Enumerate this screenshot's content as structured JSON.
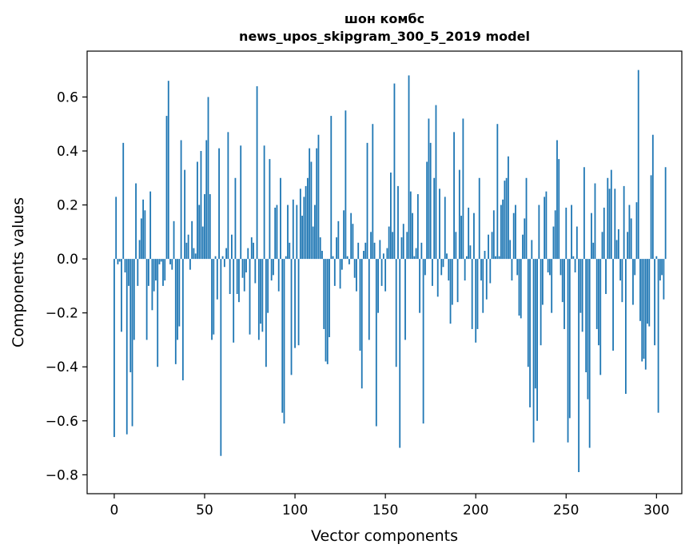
{
  "chart_data": {
    "type": "bar",
    "title": "шон комбс",
    "subtitle": "news_upos_skipgram_300_5_2019 model",
    "xlabel": "Vector components",
    "ylabel": "Components values",
    "xlim": [
      -15,
      314
    ],
    "ylim": [
      -0.87,
      0.77
    ],
    "xticks": [
      0,
      50,
      100,
      150,
      200,
      250,
      300
    ],
    "yticks": [
      -0.8,
      -0.6,
      -0.4,
      -0.2,
      0.0,
      0.2,
      0.4,
      0.6
    ],
    "ytick_labels": [
      "−0.8",
      "−0.6",
      "−0.4",
      "−0.2",
      "0.0",
      "0.2",
      "0.4",
      "0.6"
    ],
    "grid": false,
    "bar_color": "#1f77b4",
    "values": [
      -0.66,
      0.23,
      -0.02,
      -0.01,
      -0.27,
      0.43,
      -0.05,
      -0.65,
      -0.1,
      -0.42,
      -0.62,
      -0.3,
      0.28,
      -0.1,
      0.07,
      0.15,
      0.22,
      0.18,
      -0.3,
      -0.1,
      0.25,
      -0.19,
      -0.12,
      -0.08,
      -0.4,
      -0.02,
      -0.01,
      -0.1,
      -0.08,
      0.53,
      0.66,
      -0.02,
      -0.04,
      0.14,
      -0.39,
      -0.3,
      -0.25,
      0.44,
      -0.45,
      0.33,
      0.06,
      0.09,
      -0.04,
      0.14,
      0.04,
      0.02,
      0.36,
      0.2,
      0.4,
      0.12,
      0.24,
      0.44,
      0.6,
      0.24,
      -0.3,
      -0.28,
      0.01,
      -0.15,
      0.41,
      -0.73,
      0.01,
      -0.03,
      0.04,
      0.47,
      -0.13,
      0.09,
      -0.31,
      0.3,
      -0.13,
      -0.16,
      0.42,
      -0.07,
      -0.12,
      -0.05,
      0.04,
      -0.28,
      0.08,
      0.06,
      -0.09,
      0.64,
      -0.3,
      -0.24,
      -0.27,
      0.42,
      -0.4,
      -0.2,
      0.37,
      -0.08,
      -0.06,
      0.19,
      0.2,
      -0.12,
      0.3,
      -0.57,
      -0.61,
      0.01,
      0.2,
      0.06,
      -0.43,
      0.22,
      -0.33,
      0.2,
      -0.32,
      0.26,
      0.16,
      0.23,
      0.27,
      0.3,
      0.41,
      0.36,
      0.12,
      0.2,
      0.41,
      0.46,
      0.08,
      0.03,
      -0.26,
      -0.38,
      -0.39,
      -0.29,
      0.53,
      0.01,
      -0.1,
      0.08,
      0.14,
      -0.11,
      -0.04,
      0.18,
      0.55,
      0.01,
      -0.02,
      0.17,
      0.13,
      -0.07,
      -0.12,
      0.06,
      -0.34,
      -0.48,
      0.03,
      0.06,
      0.43,
      -0.3,
      0.1,
      0.5,
      0.06,
      -0.62,
      -0.2,
      0.07,
      -0.1,
      0.02,
      -0.12,
      0.04,
      0.12,
      0.32,
      0.1,
      0.65,
      -0.4,
      0.27,
      -0.7,
      0.08,
      0.13,
      -0.3,
      0.1,
      0.68,
      0.25,
      0.17,
      0.01,
      0.04,
      0.24,
      -0.2,
      0.06,
      -0.61,
      -0.06,
      0.36,
      0.52,
      0.43,
      -0.1,
      0.3,
      0.57,
      -0.14,
      0.26,
      -0.06,
      -0.03,
      0.23,
      0.02,
      -0.08,
      -0.24,
      -0.17,
      0.47,
      0.1,
      -0.16,
      0.33,
      0.16,
      0.52,
      -0.08,
      0.01,
      0.19,
      0.05,
      -0.26,
      0.17,
      -0.31,
      -0.26,
      0.3,
      -0.08,
      -0.2,
      0.03,
      -0.15,
      0.09,
      -0.09,
      0.1,
      0.18,
      0.01,
      0.5,
      0.01,
      0.2,
      0.22,
      0.29,
      0.3,
      0.38,
      0.07,
      -0.08,
      0.17,
      0.2,
      -0.06,
      -0.21,
      -0.22,
      0.09,
      0.15,
      0.3,
      -0.4,
      -0.55,
      0.07,
      -0.68,
      -0.48,
      -0.6,
      0.2,
      -0.32,
      -0.17,
      0.23,
      0.25,
      -0.05,
      -0.06,
      -0.2,
      0.12,
      0.18,
      0.44,
      0.37,
      -0.06,
      -0.16,
      -0.26,
      0.19,
      -0.68,
      -0.59,
      0.2,
      0.01,
      -0.05,
      0.12,
      -0.79,
      -0.2,
      -0.27,
      0.34,
      -0.42,
      -0.52,
      -0.7,
      0.17,
      0.06,
      0.28,
      -0.26,
      -0.32,
      -0.43,
      0.1,
      0.19,
      -0.13,
      0.3,
      0.26,
      0.33,
      -0.34,
      0.26,
      0.07,
      0.11,
      -0.08,
      -0.16,
      0.27,
      -0.5,
      0.1,
      0.2,
      0.15,
      -0.17,
      -0.06,
      0.21,
      0.7,
      -0.23,
      -0.38,
      -0.37,
      -0.41,
      -0.24,
      -0.25,
      0.31,
      0.46,
      -0.32,
      0.01,
      -0.57,
      -0.08,
      -0.06,
      -0.15,
      0.34
    ]
  }
}
